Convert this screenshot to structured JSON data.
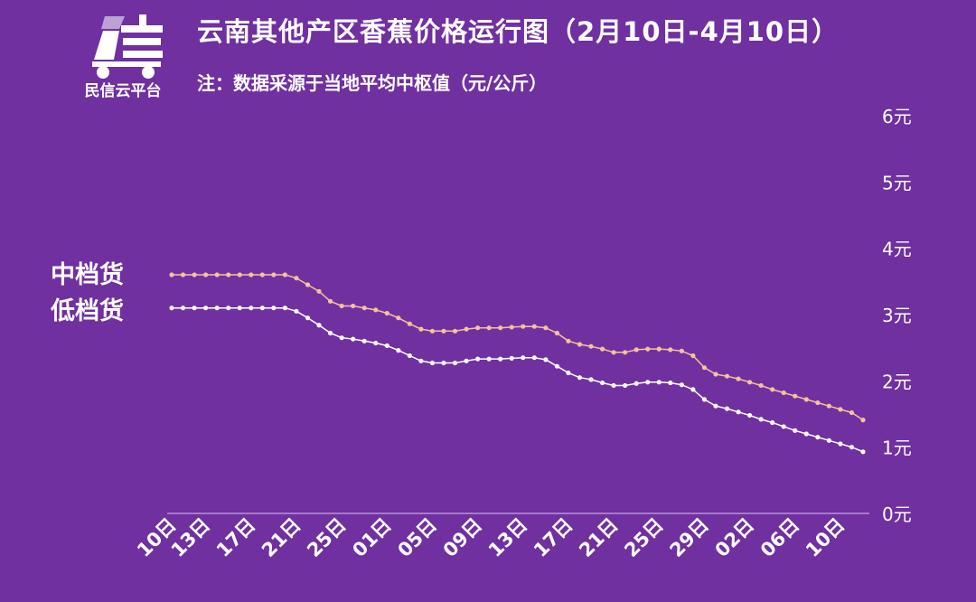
{
  "header": {
    "logo_text": "民信云平台",
    "title": "云南其他产区香蕉价格运行图（2月10日-4月10日）",
    "subtitle": "注：数据采源于当地平均中枢值（元/公斤）"
  },
  "colors": {
    "background": "#7030a0",
    "series_mid": "#f6c29a",
    "series_low": "#ffffff",
    "axis": "#d9c4ee"
  },
  "chart_data": {
    "type": "line",
    "title": "云南其他产区香蕉价格运行图（2月10日-4月10日）",
    "subtitle": "注：数据采源于当地平均中枢值（元/公斤）",
    "ylim": [
      0,
      6
    ],
    "y_ticks": [
      "0元",
      "1元",
      "2元",
      "3元",
      "4元",
      "5元",
      "6元"
    ],
    "y_tick_values": [
      0,
      1,
      2,
      3,
      4,
      5,
      6
    ],
    "y_axis_position": "right",
    "grid": false,
    "legend": "left",
    "x_tick_labels": [
      "10日",
      "13日",
      "17日",
      "21日",
      "25日",
      "01日",
      "05日",
      "09日",
      "13日",
      "17日",
      "21日",
      "25日",
      "29日",
      "02日",
      "06日",
      "10日"
    ],
    "x_tick_index": [
      0,
      3,
      7,
      11,
      15,
      19,
      23,
      27,
      31,
      35,
      39,
      43,
      47,
      51,
      55,
      59
    ],
    "series": [
      {
        "name": "中档货",
        "color": "#f6c29a",
        "values": [
          3.6,
          3.6,
          3.6,
          3.6,
          3.6,
          3.6,
          3.6,
          3.6,
          3.6,
          3.6,
          3.6,
          3.55,
          3.45,
          3.35,
          3.2,
          3.13,
          3.13,
          3.1,
          3.07,
          3.02,
          2.95,
          2.86,
          2.78,
          2.75,
          2.75,
          2.75,
          2.78,
          2.8,
          2.8,
          2.8,
          2.81,
          2.82,
          2.82,
          2.8,
          2.72,
          2.6,
          2.55,
          2.52,
          2.48,
          2.43,
          2.43,
          2.47,
          2.48,
          2.48,
          2.47,
          2.45,
          2.38,
          2.2,
          2.1,
          2.07,
          2.03,
          1.98,
          1.93,
          1.87,
          1.82,
          1.77,
          1.72,
          1.67,
          1.62,
          1.57,
          1.52,
          1.41
        ]
      },
      {
        "name": "低档货",
        "color": "#ffffff",
        "values": [
          3.1,
          3.1,
          3.1,
          3.1,
          3.1,
          3.1,
          3.1,
          3.1,
          3.1,
          3.1,
          3.1,
          3.05,
          2.95,
          2.84,
          2.72,
          2.65,
          2.63,
          2.6,
          2.57,
          2.53,
          2.46,
          2.38,
          2.3,
          2.27,
          2.27,
          2.27,
          2.3,
          2.33,
          2.33,
          2.33,
          2.34,
          2.35,
          2.35,
          2.32,
          2.22,
          2.12,
          2.05,
          2.02,
          1.97,
          1.93,
          1.93,
          1.96,
          1.98,
          1.98,
          1.97,
          1.94,
          1.87,
          1.72,
          1.62,
          1.58,
          1.53,
          1.48,
          1.42,
          1.37,
          1.31,
          1.25,
          1.2,
          1.15,
          1.1,
          1.05,
          1.0,
          0.93
        ]
      }
    ]
  }
}
